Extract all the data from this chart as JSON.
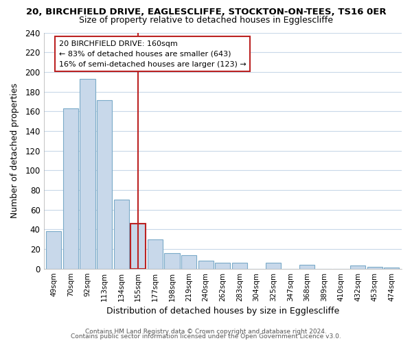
{
  "title1": "20, BIRCHFIELD DRIVE, EAGLESCLIFFE, STOCKTON-ON-TEES, TS16 0ER",
  "title2": "Size of property relative to detached houses in Egglescliffe",
  "xlabel": "Distribution of detached houses by size in Egglescliffe",
  "ylabel": "Number of detached properties",
  "bar_labels": [
    "49sqm",
    "70sqm",
    "92sqm",
    "113sqm",
    "134sqm",
    "155sqm",
    "177sqm",
    "198sqm",
    "219sqm",
    "240sqm",
    "262sqm",
    "283sqm",
    "304sqm",
    "325sqm",
    "347sqm",
    "368sqm",
    "389sqm",
    "410sqm",
    "432sqm",
    "453sqm",
    "474sqm"
  ],
  "bar_values": [
    38,
    163,
    193,
    171,
    70,
    46,
    30,
    16,
    14,
    8,
    6,
    6,
    0,
    6,
    0,
    4,
    0,
    0,
    3,
    2,
    1
  ],
  "bar_color": "#c8d8ea",
  "bar_edge_color": "#7aaac8",
  "highlight_index": 5,
  "highlight_edge_color": "#bb2222",
  "vline_color": "#bb2222",
  "annotation_title": "20 BIRCHFIELD DRIVE: 160sqm",
  "annotation_line1": "← 83% of detached houses are smaller (643)",
  "annotation_line2": "16% of semi-detached houses are larger (123) →",
  "annotation_box_color": "#ffffff",
  "annotation_box_edge": "#bb2222",
  "ylim": [
    0,
    240
  ],
  "yticks": [
    0,
    20,
    40,
    60,
    80,
    100,
    120,
    140,
    160,
    180,
    200,
    220,
    240
  ],
  "footer1": "Contains HM Land Registry data © Crown copyright and database right 2024.",
  "footer2": "Contains public sector information licensed under the Open Government Licence v3.0.",
  "bg_color": "#ffffff",
  "grid_color": "#c8d8e8"
}
